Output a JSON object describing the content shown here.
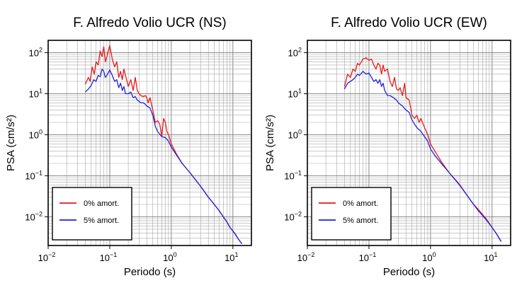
{
  "chart_data": [
    {
      "type": "line",
      "title": "F. Alfredo Volio UCR (NS)",
      "xlabel": "Periodo (s)",
      "ylabel": "PSA (cm/s²)",
      "xscale": "log",
      "yscale": "log",
      "xlim": [
        0.01,
        20
      ],
      "ylim": [
        0.002,
        200
      ],
      "x_ticks": [
        {
          "base": "10",
          "exp": "−2"
        },
        {
          "base": "10",
          "exp": "−1"
        },
        {
          "base": "10",
          "exp": "0"
        },
        {
          "base": "10",
          "exp": "1"
        }
      ],
      "y_ticks": [
        {
          "base": "10",
          "exp": "−2"
        },
        {
          "base": "10",
          "exp": "−1"
        },
        {
          "base": "10",
          "exp": "0"
        },
        {
          "base": "10",
          "exp": "1"
        },
        {
          "base": "10",
          "exp": "2"
        }
      ],
      "grid": true,
      "legend_position": "bottom-left",
      "series": [
        {
          "name": "0% amort.",
          "color": "#e41a1c",
          "points": [
            [
              0.04,
              17
            ],
            [
              0.045,
              25
            ],
            [
              0.048,
              20
            ],
            [
              0.052,
              45
            ],
            [
              0.056,
              30
            ],
            [
              0.06,
              60
            ],
            [
              0.065,
              50
            ],
            [
              0.07,
              110
            ],
            [
              0.075,
              80
            ],
            [
              0.08,
              140
            ],
            [
              0.085,
              60
            ],
            [
              0.09,
              80
            ],
            [
              0.1,
              150
            ],
            [
              0.11,
              70
            ],
            [
              0.12,
              45
            ],
            [
              0.13,
              60
            ],
            [
              0.14,
              25
            ],
            [
              0.15,
              35
            ],
            [
              0.16,
              22
            ],
            [
              0.17,
              40
            ],
            [
              0.18,
              28
            ],
            [
              0.2,
              15
            ],
            [
              0.22,
              22
            ],
            [
              0.24,
              12
            ],
            [
              0.26,
              25
            ],
            [
              0.28,
              12
            ],
            [
              0.3,
              10
            ],
            [
              0.32,
              9
            ],
            [
              0.35,
              8.5
            ],
            [
              0.38,
              9
            ],
            [
              0.4,
              8
            ],
            [
              0.42,
              6
            ],
            [
              0.45,
              8
            ],
            [
              0.5,
              4
            ],
            [
              0.55,
              2
            ],
            [
              0.6,
              2.2
            ],
            [
              0.65,
              1.8
            ],
            [
              0.7,
              0.9
            ],
            [
              0.75,
              2.5
            ],
            [
              0.8,
              2
            ],
            [
              0.85,
              1.2
            ],
            [
              0.9,
              1
            ],
            [
              1,
              0.6
            ],
            [
              1.2,
              0.35
            ],
            [
              1.5,
              0.2
            ],
            [
              2,
              0.12
            ],
            [
              3,
              0.055
            ],
            [
              4,
              0.03
            ],
            [
              5,
              0.02
            ],
            [
              6,
              0.014
            ],
            [
              7,
              0.01
            ],
            [
              8,
              0.0075
            ],
            [
              9,
              0.0055
            ],
            [
              10,
              0.0045
            ],
            [
              11,
              0.0038
            ],
            [
              12,
              0.003
            ],
            [
              14,
              0.0022
            ]
          ]
        },
        {
          "name": "5% amort.",
          "color": "#1f1fe0",
          "points": [
            [
              0.04,
              11
            ],
            [
              0.045,
              13
            ],
            [
              0.05,
              16
            ],
            [
              0.055,
              22
            ],
            [
              0.06,
              20
            ],
            [
              0.065,
              28
            ],
            [
              0.07,
              26
            ],
            [
              0.075,
              40
            ],
            [
              0.08,
              35
            ],
            [
              0.085,
              25
            ],
            [
              0.09,
              28
            ],
            [
              0.1,
              38
            ],
            [
              0.11,
              28
            ],
            [
              0.12,
              20
            ],
            [
              0.13,
              22
            ],
            [
              0.14,
              14
            ],
            [
              0.15,
              18
            ],
            [
              0.16,
              12
            ],
            [
              0.17,
              15
            ],
            [
              0.18,
              10
            ],
            [
              0.2,
              10
            ],
            [
              0.22,
              11
            ],
            [
              0.24,
              8
            ],
            [
              0.26,
              8.5
            ],
            [
              0.28,
              7
            ],
            [
              0.3,
              6.5
            ],
            [
              0.32,
              6
            ],
            [
              0.35,
              6
            ],
            [
              0.38,
              5.5
            ],
            [
              0.4,
              5
            ],
            [
              0.45,
              4.5
            ],
            [
              0.5,
              3
            ],
            [
              0.55,
              1.6
            ],
            [
              0.6,
              1.2
            ],
            [
              0.7,
              0.9
            ],
            [
              0.8,
              0.85
            ],
            [
              0.9,
              0.7
            ],
            [
              1,
              0.5
            ],
            [
              1.2,
              0.33
            ],
            [
              1.5,
              0.2
            ],
            [
              2,
              0.12
            ],
            [
              3,
              0.055
            ],
            [
              4,
              0.03
            ],
            [
              5,
              0.02
            ],
            [
              6,
              0.014
            ],
            [
              7,
              0.01
            ],
            [
              8,
              0.0075
            ],
            [
              9,
              0.0055
            ],
            [
              10,
              0.0045
            ],
            [
              11,
              0.0037
            ],
            [
              12,
              0.003
            ],
            [
              14,
              0.0022
            ]
          ]
        }
      ]
    },
    {
      "type": "line",
      "title": "F. Alfredo Volio UCR (EW)",
      "xlabel": "Periodo (s)",
      "ylabel": "PSA (cm/s²)",
      "xscale": "log",
      "yscale": "log",
      "xlim": [
        0.01,
        20
      ],
      "ylim": [
        0.002,
        200
      ],
      "x_ticks": [
        {
          "base": "10",
          "exp": "−2"
        },
        {
          "base": "10",
          "exp": "−1"
        },
        {
          "base": "10",
          "exp": "0"
        },
        {
          "base": "10",
          "exp": "1"
        }
      ],
      "y_ticks": [
        {
          "base": "10",
          "exp": "−2"
        },
        {
          "base": "10",
          "exp": "−1"
        },
        {
          "base": "10",
          "exp": "0"
        },
        {
          "base": "10",
          "exp": "1"
        },
        {
          "base": "10",
          "exp": "2"
        }
      ],
      "grid": true,
      "legend_position": "bottom-left",
      "series": [
        {
          "name": "0% amort.",
          "color": "#e41a1c",
          "points": [
            [
              0.04,
              15
            ],
            [
              0.045,
              30
            ],
            [
              0.05,
              25
            ],
            [
              0.055,
              40
            ],
            [
              0.06,
              35
            ],
            [
              0.065,
              55
            ],
            [
              0.07,
              50
            ],
            [
              0.08,
              70
            ],
            [
              0.09,
              75
            ],
            [
              0.1,
              65
            ],
            [
              0.11,
              70
            ],
            [
              0.12,
              50
            ],
            [
              0.13,
              40
            ],
            [
              0.14,
              55
            ],
            [
              0.15,
              50
            ],
            [
              0.16,
              30
            ],
            [
              0.17,
              50
            ],
            [
              0.18,
              35
            ],
            [
              0.2,
              40
            ],
            [
              0.22,
              20
            ],
            [
              0.24,
              15
            ],
            [
              0.26,
              25
            ],
            [
              0.28,
              13
            ],
            [
              0.3,
              12
            ],
            [
              0.32,
              14
            ],
            [
              0.35,
              9
            ],
            [
              0.38,
              18
            ],
            [
              0.4,
              8
            ],
            [
              0.45,
              7
            ],
            [
              0.5,
              3
            ],
            [
              0.55,
              2.5
            ],
            [
              0.6,
              3
            ],
            [
              0.65,
              2
            ],
            [
              0.7,
              2.5
            ],
            [
              0.8,
              1.5
            ],
            [
              0.9,
              1
            ],
            [
              1,
              0.6
            ],
            [
              1.2,
              0.38
            ],
            [
              1.5,
              0.22
            ],
            [
              2,
              0.12
            ],
            [
              3,
              0.06
            ],
            [
              4,
              0.032
            ],
            [
              5,
              0.02
            ],
            [
              6,
              0.015
            ],
            [
              8,
              0.009
            ],
            [
              10,
              0.0055
            ],
            [
              12,
              0.0037
            ],
            [
              14,
              0.0025
            ]
          ]
        },
        {
          "name": "5% amort.",
          "color": "#1f1fe0",
          "points": [
            [
              0.04,
              13
            ],
            [
              0.045,
              18
            ],
            [
              0.05,
              20
            ],
            [
              0.055,
              22
            ],
            [
              0.06,
              25
            ],
            [
              0.065,
              30
            ],
            [
              0.07,
              28
            ],
            [
              0.08,
              35
            ],
            [
              0.09,
              30
            ],
            [
              0.1,
              32
            ],
            [
              0.11,
              25
            ],
            [
              0.12,
              20
            ],
            [
              0.13,
              22
            ],
            [
              0.14,
              18
            ],
            [
              0.15,
              22
            ],
            [
              0.16,
              15
            ],
            [
              0.17,
              18
            ],
            [
              0.18,
              12
            ],
            [
              0.2,
              9
            ],
            [
              0.22,
              9
            ],
            [
              0.25,
              8
            ],
            [
              0.28,
              7
            ],
            [
              0.3,
              6
            ],
            [
              0.35,
              5
            ],
            [
              0.4,
              4
            ],
            [
              0.45,
              3.5
            ],
            [
              0.5,
              2.3
            ],
            [
              0.55,
              1.8
            ],
            [
              0.6,
              1.5
            ],
            [
              0.7,
              1.2
            ],
            [
              0.8,
              0.9
            ],
            [
              0.9,
              0.7
            ],
            [
              1,
              0.45
            ],
            [
              1.2,
              0.3
            ],
            [
              1.5,
              0.2
            ],
            [
              2,
              0.12
            ],
            [
              3,
              0.058
            ],
            [
              4,
              0.032
            ],
            [
              5,
              0.02
            ],
            [
              6,
              0.014
            ],
            [
              8,
              0.0085
            ],
            [
              10,
              0.0055
            ],
            [
              12,
              0.0037
            ],
            [
              14,
              0.0025
            ]
          ]
        }
      ]
    }
  ]
}
